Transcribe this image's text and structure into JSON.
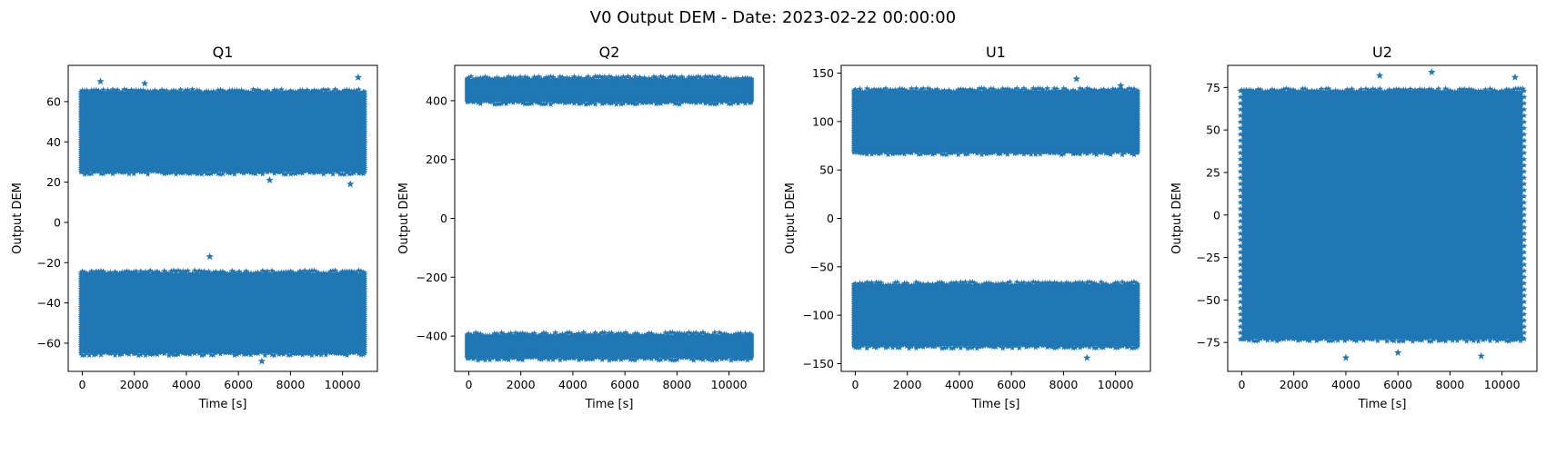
{
  "figure": {
    "title": "V0 Output DEM - Date: 2023-02-22 00:00:00"
  },
  "chart_data": [
    {
      "type": "scatter",
      "title": "Q1",
      "xlabel": "Time [s]",
      "ylabel": "Output DEM",
      "marker": "star",
      "color": "#1f77b4",
      "xlim": [
        -540,
        11340
      ],
      "ylim": [
        -74,
        78
      ],
      "xticks": [
        0,
        2000,
        4000,
        6000,
        8000,
        10000
      ],
      "yticks": [
        -60,
        -40,
        -20,
        0,
        20,
        40,
        60
      ],
      "x_range": [
        0,
        10800
      ],
      "bands": [
        {
          "center": 45,
          "low": 25,
          "high": 65
        },
        {
          "center": -45,
          "low": -65,
          "high": -25
        }
      ],
      "outliers": [
        [
          700,
          70
        ],
        [
          2400,
          69
        ],
        [
          10600,
          72
        ],
        [
          10300,
          19
        ],
        [
          7200,
          21
        ],
        [
          4900,
          -17
        ],
        [
          6900,
          -69
        ]
      ]
    },
    {
      "type": "scatter",
      "title": "Q2",
      "xlabel": "Time [s]",
      "ylabel": "Output DEM",
      "marker": "star",
      "color": "#1f77b4",
      "xlim": [
        -540,
        11340
      ],
      "ylim": [
        -520,
        520
      ],
      "xticks": [
        0,
        2000,
        4000,
        6000,
        8000,
        10000
      ],
      "yticks": [
        -400,
        -200,
        0,
        200,
        400
      ],
      "x_range": [
        0,
        10800
      ],
      "bands": [
        {
          "center": 435,
          "low": 395,
          "high": 475
        },
        {
          "center": -435,
          "low": -475,
          "high": -395
        }
      ],
      "outliers": []
    },
    {
      "type": "scatter",
      "title": "U1",
      "xlabel": "Time [s]",
      "ylabel": "Output DEM",
      "marker": "star",
      "color": "#1f77b4",
      "xlim": [
        -540,
        11340
      ],
      "ylim": [
        -158,
        158
      ],
      "xticks": [
        0,
        2000,
        4000,
        6000,
        8000,
        10000
      ],
      "yticks": [
        -150,
        -100,
        -50,
        0,
        50,
        100,
        150
      ],
      "x_range": [
        0,
        10800
      ],
      "bands": [
        {
          "center": 100,
          "low": 68,
          "high": 132
        },
        {
          "center": -100,
          "low": -132,
          "high": -68
        }
      ],
      "outliers": [
        [
          8500,
          144
        ],
        [
          8900,
          -144
        ],
        [
          10200,
          137
        ]
      ]
    },
    {
      "type": "scatter",
      "title": "U2",
      "xlabel": "Time [s]",
      "ylabel": "Output DEM",
      "marker": "star",
      "color": "#1f77b4",
      "xlim": [
        -540,
        11340
      ],
      "ylim": [
        -92,
        88
      ],
      "xticks": [
        0,
        2000,
        4000,
        6000,
        8000,
        10000
      ],
      "yticks": [
        -75,
        -50,
        -25,
        0,
        25,
        50,
        75
      ],
      "x_range": [
        0,
        10800
      ],
      "bands": [
        {
          "center": 0,
          "low": -73,
          "high": 73
        }
      ],
      "outliers": [
        [
          7300,
          84
        ],
        [
          5300,
          82
        ],
        [
          10500,
          81
        ],
        [
          4000,
          -84
        ],
        [
          9200,
          -83
        ],
        [
          6000,
          -81
        ]
      ]
    }
  ]
}
